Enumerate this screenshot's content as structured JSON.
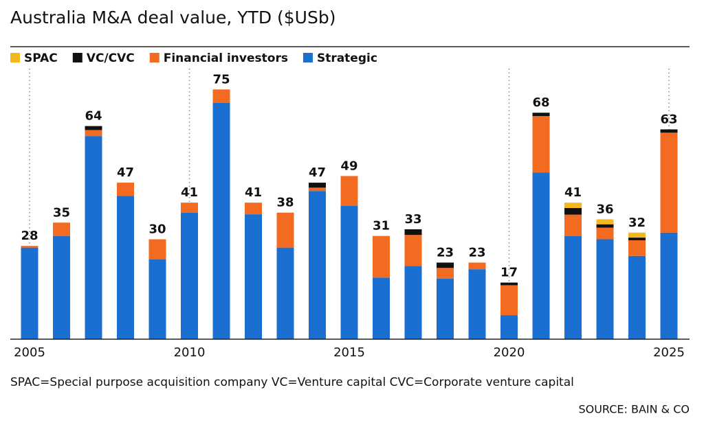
{
  "chart_data": {
    "type": "stacked-bar",
    "title": "Australia M&A deal value, YTD ($USb)",
    "categories": [
      "2005",
      null,
      null,
      null,
      null,
      "2010",
      null,
      null,
      null,
      null,
      "2015",
      null,
      null,
      null,
      null,
      "2020",
      null,
      null,
      null,
      null,
      "2025"
    ],
    "series": [
      {
        "name": "SPAC",
        "color": "#f5b81c",
        "values": [
          0,
          0,
          0,
          0,
          0,
          0,
          0,
          0,
          0,
          0,
          0,
          0,
          0,
          0,
          0,
          0,
          0,
          1.6,
          1.5,
          1.5,
          0
        ]
      },
      {
        "name": "VC/CVC",
        "color": "#111111",
        "values": [
          0,
          0,
          1.2,
          0,
          0,
          0,
          0,
          0,
          0,
          1.5,
          0,
          0,
          1.7,
          1.6,
          0,
          0.8,
          1,
          2,
          1,
          0.8,
          1
        ]
      },
      {
        "name": "Financial investors",
        "color": "#f26b21",
        "values": [
          0.5,
          4,
          1.8,
          4,
          6,
          3,
          4,
          3.5,
          10.5,
          1,
          9,
          12.5,
          9.3,
          3.2,
          2,
          9,
          17,
          6.4,
          3.5,
          4.7,
          30
        ]
      },
      {
        "name": "Strategic",
        "color": "#1a6fd0",
        "values": [
          27.5,
          31,
          61,
          43,
          24,
          38,
          71,
          37.5,
          27.5,
          44.5,
          40,
          18.5,
          22,
          18.2,
          21,
          7.2,
          50,
          31,
          30,
          25,
          32
        ]
      }
    ],
    "totals": [
      28,
      35,
      64,
      47,
      30,
      41,
      75,
      41,
      38,
      47,
      49,
      31,
      33,
      23,
      23,
      17,
      68,
      41,
      36,
      32,
      63
    ],
    "ylim": [
      0,
      80
    ],
    "footnote": "SPAC=Special purpose acquisition company VC=Venture capital   CVC=Corporate venture capital",
    "source": "SOURCE: BAIN & CO"
  }
}
